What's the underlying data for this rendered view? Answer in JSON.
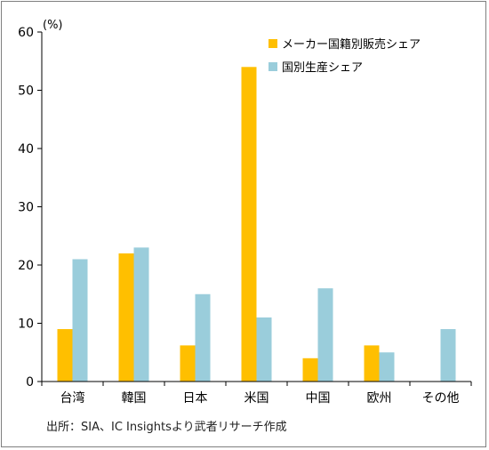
{
  "chart_data": {
    "type": "bar",
    "unit_label": "(%)",
    "categories": [
      "台湾",
      "韓国",
      "日本",
      "米国",
      "中国",
      "欧州",
      "その他"
    ],
    "series": [
      {
        "name": "メーカー国籍別販売シェア",
        "color": "#FFBF00",
        "values": [
          9,
          22,
          6.2,
          54,
          4,
          6.2,
          null
        ]
      },
      {
        "name": "国別生産シェア",
        "color": "#9ACDDB",
        "values": [
          21,
          23,
          15,
          11,
          16,
          5,
          9
        ]
      }
    ],
    "ylim": [
      0,
      60
    ],
    "yticks": [
      "0",
      "10",
      "20",
      "30",
      "40",
      "50",
      "60"
    ],
    "grid": false,
    "legend": "top-right",
    "source": "出所：SIA、IC Insightsより武者リサーチ作成"
  }
}
